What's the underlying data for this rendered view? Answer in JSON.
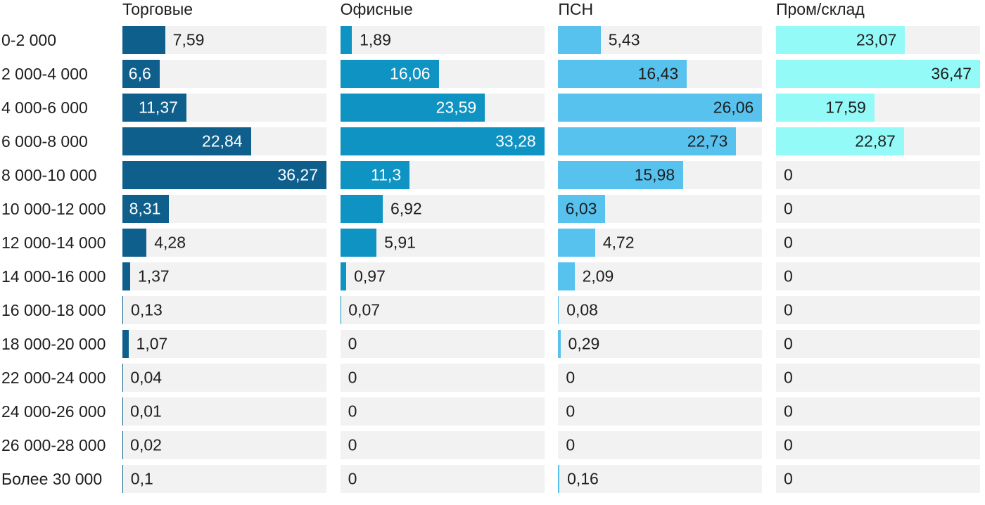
{
  "chart_data": {
    "type": "bar",
    "orientation": "horizontal",
    "title": "",
    "xlabel": "",
    "ylabel": "",
    "legend": "none",
    "grid": false,
    "track_color": "#f2f2f2",
    "text_color": "#1e1e1e",
    "scale_note": "each column is normalized independently; column max value spans the full track width",
    "categories": [
      "0-2 000",
      "2 000-4 000",
      "4 000-6 000",
      "6 000-8 000",
      "8 000-10 000",
      "10 000-12 000",
      "12 000-14 000",
      "14 000-16 000",
      "16 000-18 000",
      "18 000-20 000",
      "22 000-24 000",
      "24 000-26 000",
      "26 000-28 000",
      "Более 30 000"
    ],
    "series": [
      {
        "name": "Торговые",
        "color": "#0f5f8c",
        "inside_label_color": "#ffffff",
        "values": [
          7.59,
          6.6,
          11.37,
          22.84,
          36.27,
          8.31,
          4.28,
          1.37,
          0.13,
          1.07,
          0.04,
          0.01,
          0.02,
          0.1
        ],
        "labels": [
          "7,59",
          "6,6",
          "11,37",
          "22,84",
          "36,27",
          "8,31",
          "4,28",
          "1,37",
          "0,13",
          "1,07",
          "0,04",
          "0,01",
          "0,02",
          "0,1"
        ],
        "label_positions": [
          "out",
          "in",
          "in",
          "in",
          "in",
          "in",
          "out",
          "out",
          "out",
          "out",
          "out",
          "out",
          "out",
          "out"
        ]
      },
      {
        "name": "Офисные",
        "color": "#0e93c3",
        "inside_label_color": "#ffffff",
        "values": [
          1.89,
          16.06,
          23.59,
          33.28,
          11.3,
          6.92,
          5.91,
          0.97,
          0.07,
          0,
          0,
          0,
          0,
          0
        ],
        "labels": [
          "1,89",
          "16,06",
          "23,59",
          "33,28",
          "11,3",
          "6,92",
          "5,91",
          "0,97",
          "0,07",
          "0",
          "0",
          "0",
          "0",
          "0"
        ],
        "label_positions": [
          "out",
          "in",
          "in",
          "in",
          "in",
          "out",
          "out",
          "out",
          "out",
          "out",
          "out",
          "out",
          "out",
          "out"
        ]
      },
      {
        "name": "ПСН",
        "color": "#58c2ef",
        "inside_label_color": "#1e1e1e",
        "values": [
          5.43,
          16.43,
          26.06,
          22.73,
          15.98,
          6.03,
          4.72,
          2.09,
          0.08,
          0.29,
          0,
          0,
          0,
          0.16
        ],
        "labels": [
          "5,43",
          "16,43",
          "26,06",
          "22,73",
          "15,98",
          "6,03",
          "4,72",
          "2,09",
          "0,08",
          "0,29",
          "0",
          "0",
          "0",
          "0,16"
        ],
        "label_positions": [
          "out",
          "in",
          "in",
          "in",
          "in",
          "in",
          "out",
          "out",
          "out",
          "out",
          "out",
          "out",
          "out",
          "out"
        ]
      },
      {
        "name": "Пром/склад",
        "color": "#93faf8",
        "inside_label_color": "#1e1e1e",
        "values": [
          23.07,
          36.47,
          17.59,
          22.87,
          0,
          0,
          0,
          0,
          0,
          0,
          0,
          0,
          0,
          0
        ],
        "labels": [
          "23,07",
          "36,47",
          "17,59",
          "22,87",
          "0",
          "0",
          "0",
          "0",
          "0",
          "0",
          "0",
          "0",
          "0",
          "0"
        ],
        "label_positions": [
          "in",
          "in",
          "in",
          "in",
          "out",
          "out",
          "out",
          "out",
          "out",
          "out",
          "out",
          "out",
          "out",
          "out"
        ]
      }
    ]
  }
}
